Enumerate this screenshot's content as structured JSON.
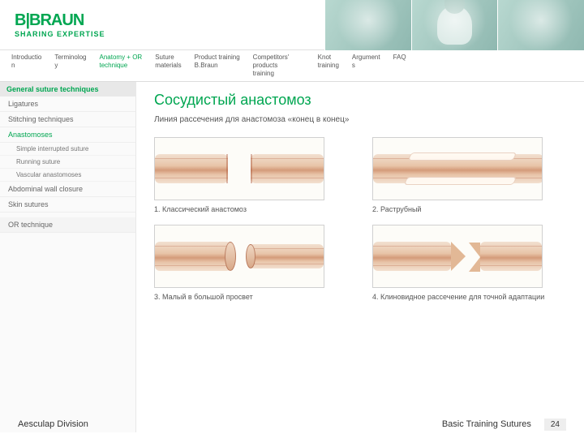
{
  "brand": {
    "name": "B|BRAUN",
    "tagline": "SHARING EXPERTISE"
  },
  "nav": {
    "items": [
      {
        "label": "Introductio\nn"
      },
      {
        "label": "Terminolog\ny"
      },
      {
        "label": "Anatomy + OR\ntechnique"
      },
      {
        "label": "Suture\nmaterials"
      },
      {
        "label": "Product training\nB.Braun"
      },
      {
        "label": "Competitors' products\ntraining"
      },
      {
        "label": "Knot\ntraining"
      },
      {
        "label": "Argument\ns"
      },
      {
        "label": "FAQ"
      }
    ],
    "active_index": 2
  },
  "sidebar": {
    "heading": "General suture techniques",
    "items": [
      {
        "label": "Ligatures",
        "selected": false,
        "indent": 0
      },
      {
        "label": "Stitching techniques",
        "selected": false,
        "indent": 0
      },
      {
        "label": "Anastomoses",
        "selected": true,
        "indent": 0
      },
      {
        "label": "Simple interrupted suture",
        "selected": false,
        "indent": 1
      },
      {
        "label": "Running suture",
        "selected": false,
        "indent": 1
      },
      {
        "label": "Vascular anastomoses",
        "selected": false,
        "indent": 1
      },
      {
        "label": "Abdominal wall closure",
        "selected": false,
        "indent": 0
      },
      {
        "label": "Skin sutures",
        "selected": false,
        "indent": 0
      }
    ],
    "second_heading": "OR technique"
  },
  "content": {
    "title": "Сосудистый анастомоз",
    "subtitle": "Линия рассечения для анастомоза «конец в конец»",
    "captions": [
      "1. Классический анастомоз",
      "2. Раструбный",
      "3. Малый  в большой просвет",
      "4. Клиновидное рассечение для точной адаптации"
    ]
  },
  "footer": {
    "left": "Aesculap Division",
    "center": "Basic Training Sutures",
    "page": "24"
  },
  "colors": {
    "brand": "#00a651",
    "vessel_light": "#f2e0d0",
    "vessel_dark": "#d49b7a",
    "border": "#d0d0d0"
  }
}
